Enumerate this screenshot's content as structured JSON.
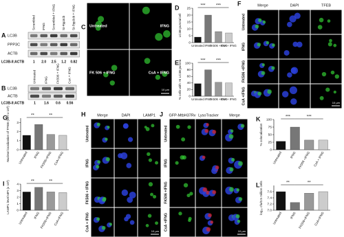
{
  "panels": {
    "A": {
      "letter": "A",
      "columns": [
        "Scrambled",
        "IFNG",
        "Scrambled + IFNG",
        "Si-Ppp3cb",
        "Si-Ppp3cb + IFNG"
      ],
      "rows": [
        "LC3B",
        "PPP3C",
        "ACTB"
      ],
      "ratio_label": "LC3B-II:ACTB",
      "ratios": [
        "1",
        "2.0",
        "2.5",
        "1.2",
        "0.82"
      ]
    },
    "B": {
      "letter": "B",
      "columns": [
        "Untreated",
        "IFNG",
        "FK506 + IFNG",
        "CsA + IFNG"
      ],
      "rows": [
        "LC3B",
        "ACTB"
      ],
      "ratio_label": "LC3B-II:ACTB",
      "ratios": [
        "1",
        "1.6",
        "0.6",
        "0.56"
      ]
    },
    "C": {
      "letter": "C",
      "cells": [
        "Untreated",
        "IFNG",
        "FK 506 + IFNG",
        "CsA + IFNG"
      ],
      "scale": "10 µm"
    },
    "D": {
      "letter": "D",
      "type": "bar",
      "ylabel": "LC3B puncta/cell",
      "categories": [
        "Untreated",
        "IFNG",
        "FK506 +IFNG",
        "CsA + IFNG"
      ],
      "values": [
        4,
        20,
        8,
        7
      ],
      "colors": [
        "#111111",
        "#777777",
        "#999999",
        "#cccccc"
      ],
      "ylim": [
        0,
        25
      ],
      "yticks": [
        0,
        5,
        10,
        15,
        20,
        25
      ],
      "significance": [
        "***",
        "***"
      ]
    },
    "E": {
      "letter": "E",
      "type": "bar",
      "ylabel": "% cells with >5 LC3B puncta",
      "categories": [
        "Untreated",
        "IFNG",
        "FK506 +IFNG",
        "CsA + IFNG"
      ],
      "values": [
        38,
        80,
        42,
        40
      ],
      "colors": [
        "#111111",
        "#777777",
        "#999999",
        "#cccccc"
      ],
      "ylim": [
        0,
        100
      ],
      "yticks": [
        0,
        20,
        40,
        60,
        80,
        100
      ],
      "significance": [
        "***",
        "***"
      ]
    },
    "F": {
      "letter": "F",
      "columns": [
        "Merge",
        "DAPI",
        "TFEB"
      ],
      "rows": [
        "Untreated",
        "IFNG",
        "FK506 +IFNG",
        "CsA +IFNG"
      ],
      "scale": "10 µm"
    },
    "G": {
      "letter": "G",
      "type": "bar",
      "ylabel": "Nuclear localization of TFEB (MFI x 10³)",
      "categories": [
        "Untreated",
        "IFNG",
        "FK506+IFNG",
        "CsA+IFNG"
      ],
      "values": [
        1.6,
        2.8,
        1.7,
        1.6
      ],
      "colors": [
        "#111111",
        "#777777",
        "#999999",
        "#cccccc"
      ],
      "ylim": [
        0,
        3.5
      ],
      "yticks": [
        0,
        1,
        2,
        3
      ],
      "significance": [
        "**",
        "**"
      ]
    },
    "H": {
      "letter": "H",
      "columns": [
        "Merge",
        "DAPI",
        "LAMP1"
      ],
      "rows": [
        "Untreated",
        "IFNG",
        "FK506 + IFNG",
        "CsA + IFNG"
      ],
      "scale": "10 µm"
    },
    "I": {
      "letter": "I",
      "type": "bar",
      "ylabel": "LAMP1 level MFI (x 10²)",
      "categories": [
        "Untreated",
        "IFNG",
        "FK506+IFNG",
        "CsA+IFNG"
      ],
      "values": [
        2.8,
        3.5,
        2.8,
        2.7
      ],
      "colors": [
        "#111111",
        "#777777",
        "#999999",
        "#cccccc"
      ],
      "ylim": [
        0,
        4
      ],
      "yticks": [
        0,
        1,
        2,
        3,
        4
      ],
      "significance": [
        "**",
        "**"
      ]
    },
    "J": {
      "letter": "J",
      "columns": [
        "GFP-MtbH37Rv",
        "LysoTracker",
        "Merge"
      ],
      "rows": [
        "Untreated",
        "IFNG",
        "FK506 +IFNG",
        "CsA +IFNG"
      ],
      "scale": "10 µm"
    },
    "K": {
      "letter": "K",
      "type": "bar",
      "ylabel": "% colocalization",
      "categories": [
        "Untreated",
        "IFNG",
        "FK506 +IFNG",
        "CsA + IFNG"
      ],
      "values": [
        28,
        75,
        32,
        32
      ],
      "colors": [
        "#111111",
        "#777777",
        "#999999",
        "#cccccc"
      ],
      "ylim": [
        0,
        100
      ],
      "yticks": [
        0,
        25,
        50,
        75,
        100
      ],
      "significance": [
        "***",
        "***"
      ]
    },
    "L": {
      "letter": "L",
      "type": "bar",
      "ylabel": "log₁₀ cfu/0.5 million cells",
      "categories": [
        "Untreated",
        "IFNG",
        "FK506+IFNG",
        "CsA+IFNG"
      ],
      "values": [
        7.6,
        7.25,
        7.55,
        7.6
      ],
      "colors": [
        "#111111",
        "#777777",
        "#999999",
        "#cccccc"
      ],
      "ylim": [
        7.0,
        7.8
      ],
      "yticks": [
        {
          "value": 7,
          "label": "7.0"
        },
        7.2,
        7.4,
        7.6
      ],
      "significance": [
        "**",
        "**"
      ]
    }
  }
}
